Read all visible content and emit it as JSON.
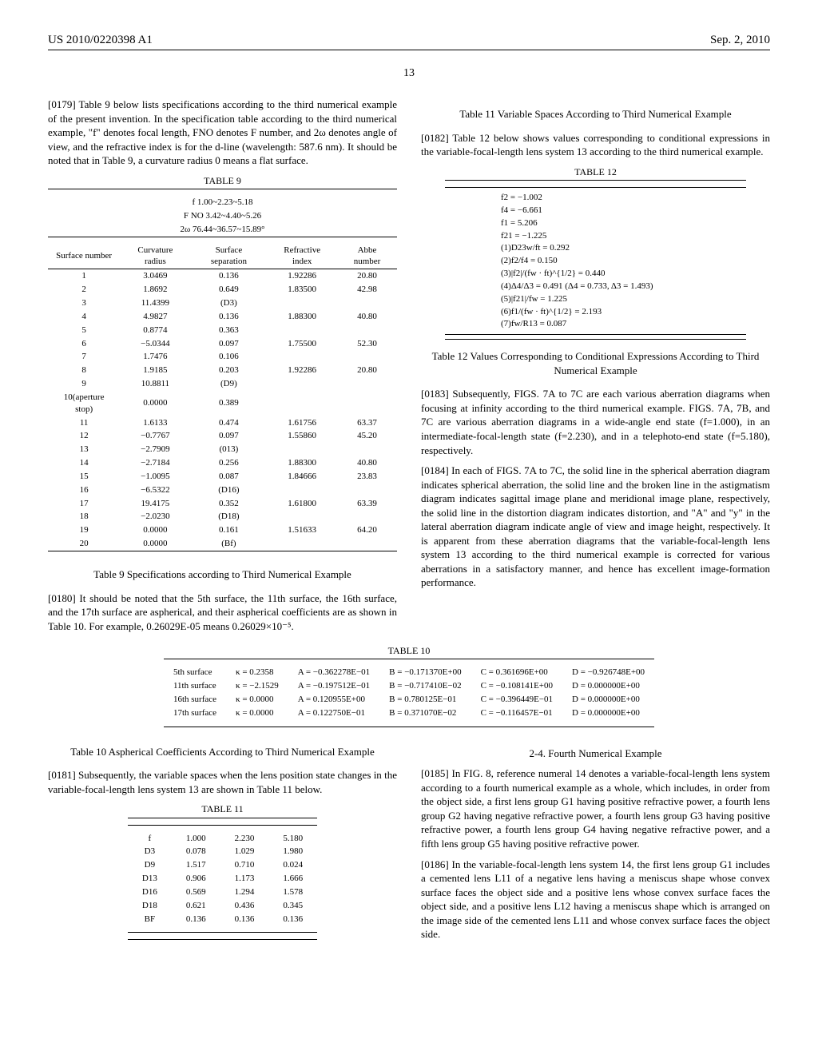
{
  "header": {
    "left": "US 2010/0220398 A1",
    "right": "Sep. 2, 2010"
  },
  "page_number": "13",
  "col1": {
    "p0179": "[0179]   Table 9 below lists specifications according to the third numerical example of the present invention. In the specification table according to the third numerical example, \"f\" denotes focal length, FNO denotes F number, and 2ω denotes angle of view, and the refractive index is for the d-line (wavelength: 587.6 nm). It should be noted that in Table 9, a curvature radius 0 means a flat surface.",
    "table9": {
      "title": "TABLE 9",
      "subtitle_f": "f 1.00~2.23~5.18",
      "subtitle_fno": "F NO 3.42~4.40~5.26",
      "subtitle_2w": "2ω 76.44~36.57~15.89°",
      "headers": [
        "Surface number",
        "Curvature radius",
        "Surface separation",
        "Refractive index",
        "Abbe number"
      ],
      "rows": [
        [
          "1",
          "3.0469",
          "0.136",
          "1.92286",
          "20.80"
        ],
        [
          "2",
          "1.8692",
          "0.649",
          "1.83500",
          "42.98"
        ],
        [
          "3",
          "11.4399",
          "(D3)",
          "",
          ""
        ],
        [
          "4",
          "4.9827",
          "0.136",
          "1.88300",
          "40.80"
        ],
        [
          "5",
          "0.8774",
          "0.363",
          "",
          ""
        ],
        [
          "6",
          "−5.0344",
          "0.097",
          "1.75500",
          "52.30"
        ],
        [
          "7",
          "1.7476",
          "0.106",
          "",
          ""
        ],
        [
          "8",
          "1.9185",
          "0.203",
          "1.92286",
          "20.80"
        ],
        [
          "9",
          "10.8811",
          "(D9)",
          "",
          ""
        ],
        [
          "10(aperture stop)",
          "0.0000",
          "0.389",
          "",
          ""
        ],
        [
          "11",
          "1.6133",
          "0.474",
          "1.61756",
          "63.37"
        ],
        [
          "12",
          "−0.7767",
          "0.097",
          "1.55860",
          "45.20"
        ],
        [
          "13",
          "−2.7909",
          "(013)",
          "",
          ""
        ],
        [
          "14",
          "−2.7184",
          "0.256",
          "1.88300",
          "40.80"
        ],
        [
          "15",
          "−1.0095",
          "0.087",
          "1.84666",
          "23.83"
        ],
        [
          "16",
          "−6.5322",
          "(D16)",
          "",
          ""
        ],
        [
          "17",
          "19.4175",
          "0.352",
          "1.61800",
          "63.39"
        ],
        [
          "18",
          "−2.0230",
          "(D18)",
          "",
          ""
        ],
        [
          "19",
          "0.0000",
          "0.161",
          "1.51633",
          "64.20"
        ],
        [
          "20",
          "0.0000",
          "(Bf)",
          "",
          ""
        ]
      ]
    },
    "caption9": "Table 9 Specifications according to Third Numerical Example",
    "p0180": "[0180]   It should be noted that the 5th surface, the 11th surface, the 16th surface, and the 17th surface are aspherical, and their aspherical coefficients are as shown in Table 10. For example, 0.26029E-05 means 0.26029×10⁻⁵.",
    "caption10": "Table 10 Aspherical Coefficients According to Third Numerical Example",
    "p0181": "[0181]   Subsequently, the variable spaces when the lens position state changes in the variable-focal-length lens system 13 are shown in Table 11 below.",
    "table11": {
      "title": "TABLE 11",
      "rows": [
        [
          "f",
          "1.000",
          "2.230",
          "5.180"
        ],
        [
          "D3",
          "0.078",
          "1.029",
          "1.980"
        ],
        [
          "D9",
          "1.517",
          "0.710",
          "0.024"
        ],
        [
          "D13",
          "0.906",
          "1.173",
          "1.666"
        ],
        [
          "D16",
          "0.569",
          "1.294",
          "1.578"
        ],
        [
          "D18",
          "0.621",
          "0.436",
          "0.345"
        ],
        [
          "BF",
          "0.136",
          "0.136",
          "0.136"
        ]
      ]
    }
  },
  "col2": {
    "caption11": "Table 11 Variable Spaces According to Third Numerical Example",
    "p0182": "[0182]   Table 12 below shows values corresponding to conditional expressions in the variable-focal-length lens system 13 according to the third numerical example.",
    "table12": {
      "title": "TABLE 12",
      "lines": [
        "f2 = −1.002",
        "f4 = −6.661",
        "f1 = 5.206",
        "f21 = −1.225",
        "(1)D23w/ft = 0.292",
        "(2)f2/f4 = 0.150",
        "(3)|f2|/(fw · ft)^{1/2} = 0.440",
        "(4)Δ4/Δ3 = 0.491 (Δ4 = 0.733, Δ3 = 1.493)",
        "(5)|f21|/fw = 1.225",
        "(6)f1/(fw · ft)^{1/2} = 2.193",
        "(7)fw/R13 = 0.087"
      ]
    },
    "caption12": "Table 12 Values Corresponding to Conditional Expressions According to Third Numerical Example",
    "p0183": "[0183]   Subsequently, FIGS. 7A to 7C are each various aberration diagrams when focusing at infinity according to the third numerical example. FIGS. 7A, 7B, and 7C are various aberration diagrams in a wide-angle end state (f=1.000), in an intermediate-focal-length state (f=2.230), and in a telephoto-end state (f=5.180), respectively.",
    "p0184": "[0184]   In each of FIGS. 7A to 7C, the solid line in the spherical aberration diagram indicates spherical aberration, the solid line and the broken line in the astigmatism diagram indicates sagittal image plane and meridional image plane, respectively, the solid line in the distortion diagram indicates distortion, and \"A\" and \"y\" in the lateral aberration diagram indicate angle of view and image height, respectively. It is apparent from these aberration diagrams that the variable-focal-length lens system 13 according to the third numerical example is corrected for various aberrations in a satisfactory manner, and hence has excellent image-formation performance.",
    "section24": "2-4. Fourth Numerical Example",
    "p0185": "[0185]   In FIG. 8, reference numeral 14 denotes a variable-focal-length lens system according to a fourth numerical example as a whole, which includes, in order from the object side, a first lens group G1 having positive refractive power, a fourth lens group G2 having negative refractive power, a fourth lens group G3 having positive refractive power, a fourth lens group G4 having negative refractive power, and a fifth lens group G5 having positive refractive power.",
    "p0186": "[0186]   In the variable-focal-length lens system 14, the first lens group G1 includes a cemented lens L11 of a negative lens having a meniscus shape whose convex surface faces the object side and a positive lens whose convex surface faces the object side, and a positive lens L12 having a meniscus shape which is arranged on the image side of the cemented lens L11 and whose convex surface faces the object side."
  },
  "table10": {
    "title": "TABLE 10",
    "rows": [
      [
        "5th surface",
        "κ = 0.2358",
        "A = −0.362278E−01",
        "B = −0.171370E+00",
        "C = 0.361696E+00",
        "D = −0.926748E+00"
      ],
      [
        "11th surface",
        "κ = −2.1529",
        "A = −0.197512E−01",
        "B = −0.717410E−02",
        "C = −0.108141E+00",
        "D = 0.000000E+00"
      ],
      [
        "16th surface",
        "κ = 0.0000",
        "A = 0.120955E+00",
        "B = 0.780125E−01",
        "C = −0.396449E−01",
        "D = 0.000000E+00"
      ],
      [
        "17th surface",
        "κ = 0.0000",
        "A = 0.122750E−01",
        "B = 0.371070E−02",
        "C = −0.116457E−01",
        "D = 0.000000E+00"
      ]
    ]
  }
}
